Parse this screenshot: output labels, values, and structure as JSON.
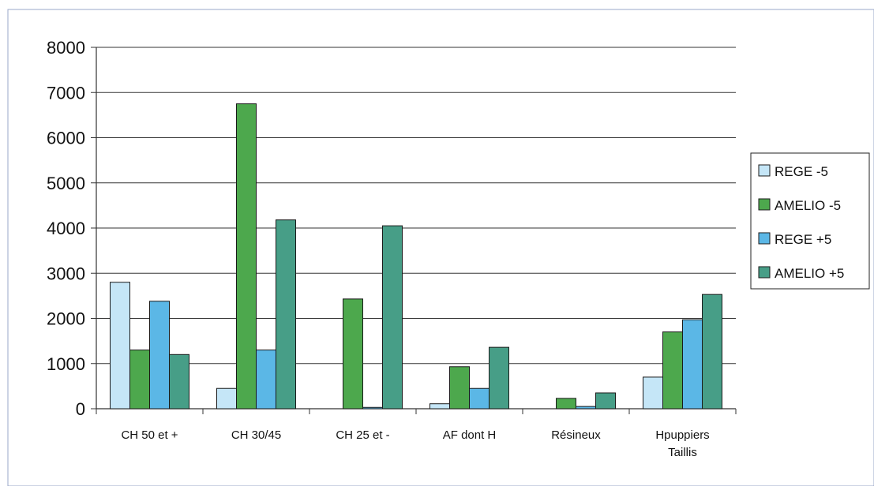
{
  "chart_data": {
    "type": "bar",
    "categories": [
      [
        "CH 50 et +"
      ],
      [
        "CH 30/45"
      ],
      [
        "CH 25 et -"
      ],
      [
        "AF dont H"
      ],
      [
        "Résineux"
      ],
      [
        "Hpuppiers",
        "Taillis"
      ]
    ],
    "series": [
      {
        "name": "REGE -5",
        "color": "#c5e6f7",
        "values": [
          2800,
          450,
          0,
          110,
          0,
          700
        ]
      },
      {
        "name": "AMELIO -5",
        "color": "#4da84d",
        "values": [
          1300,
          6750,
          2430,
          930,
          230,
          1700
        ]
      },
      {
        "name": "REGE +5",
        "color": "#5bb7e6",
        "values": [
          2380,
          1300,
          30,
          450,
          50,
          1970
        ]
      },
      {
        "name": "AMELIO +5",
        "color": "#479e87",
        "values": [
          1200,
          4180,
          4050,
          1360,
          350,
          2530
        ]
      }
    ],
    "ylim": [
      0,
      8000
    ],
    "yticks": [
      0,
      1000,
      2000,
      3000,
      4000,
      5000,
      6000,
      7000,
      8000
    ],
    "grid": true,
    "legend_position": "right"
  }
}
